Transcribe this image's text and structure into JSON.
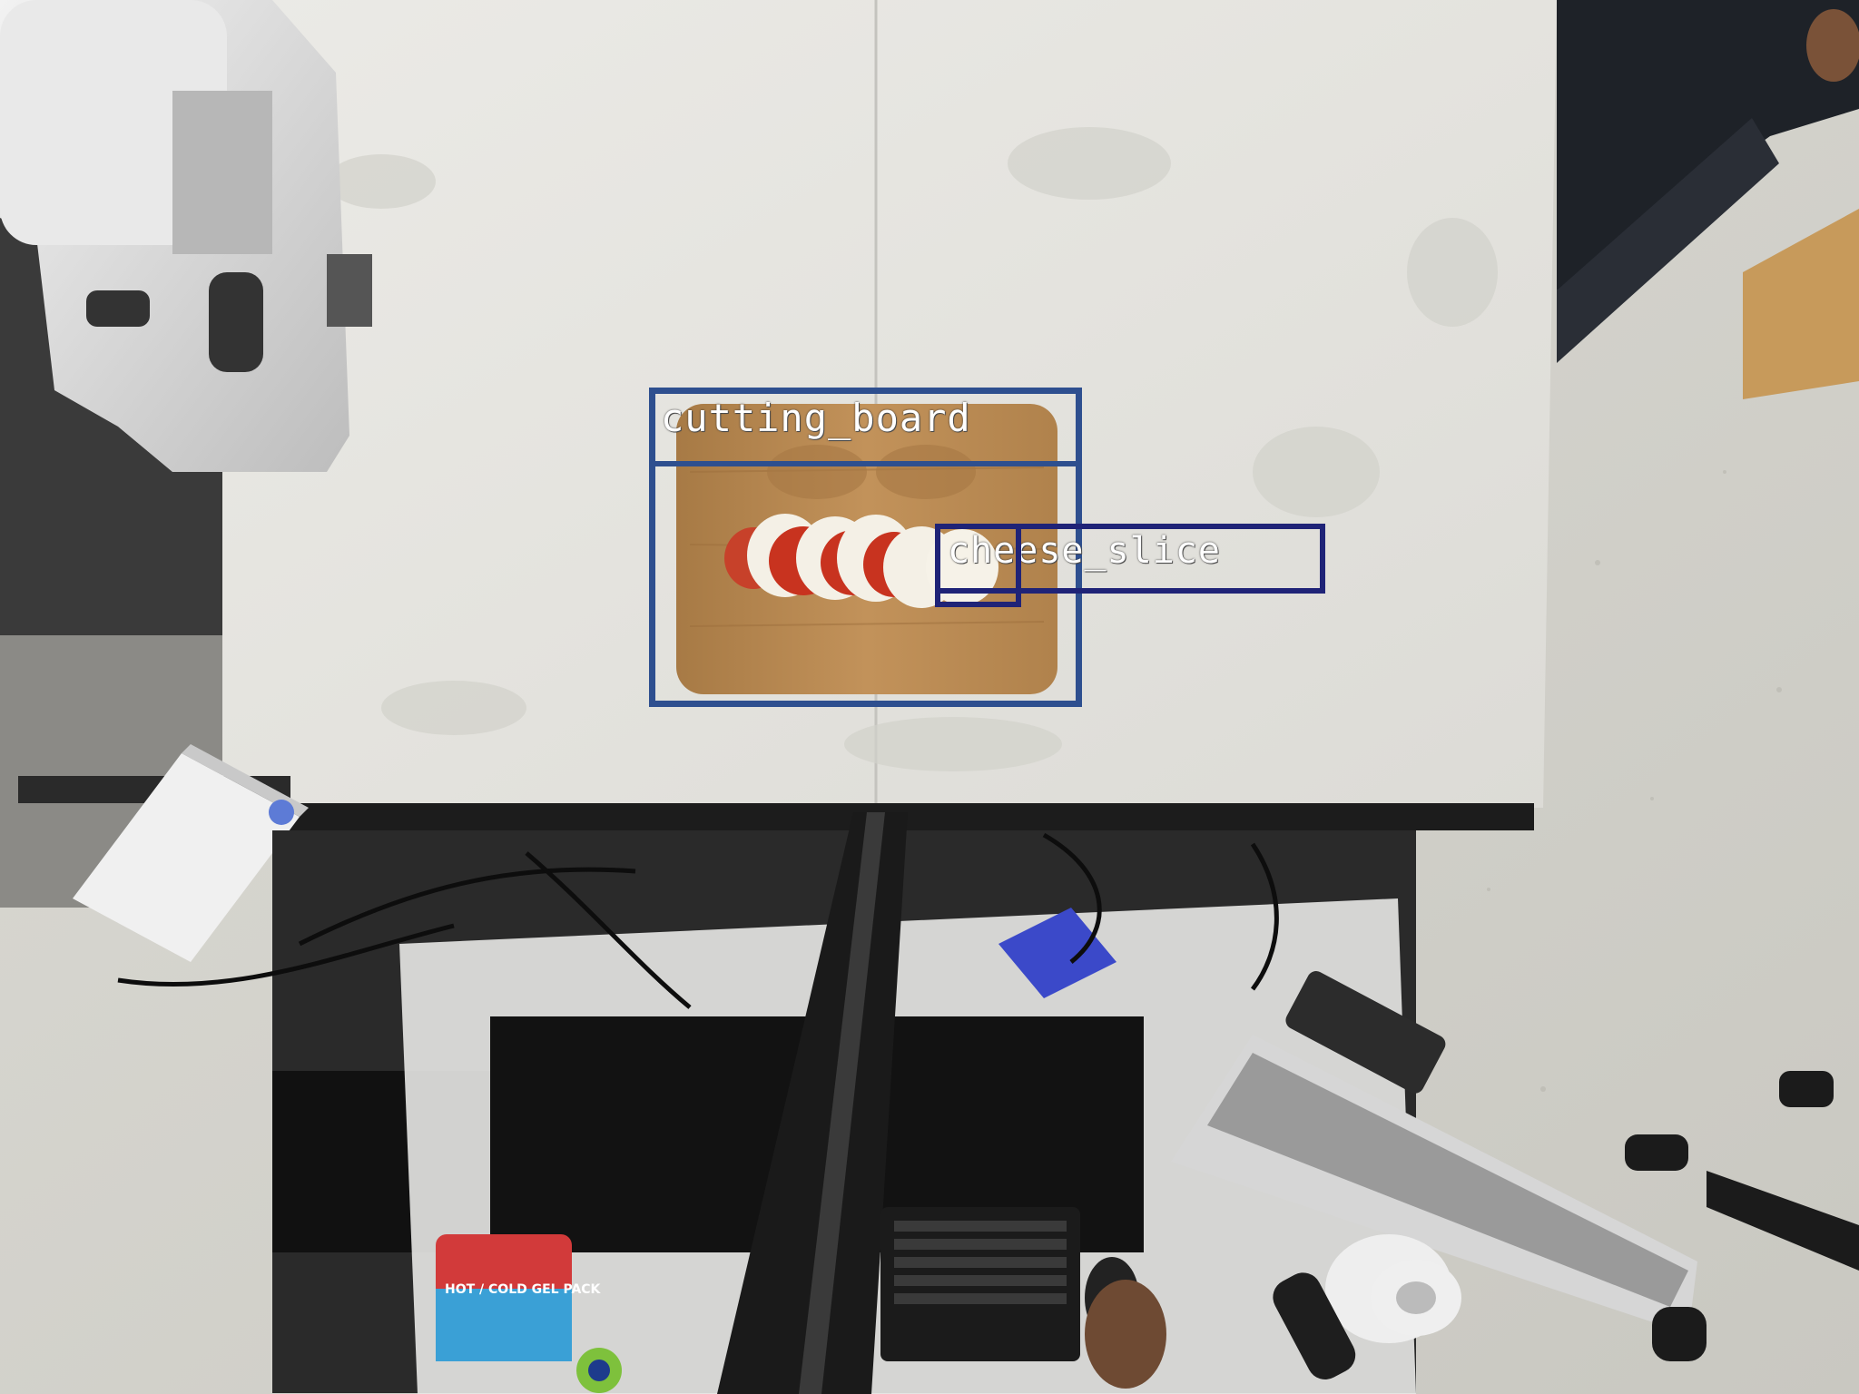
{
  "image": {
    "description_colors": {
      "floor": "#d4d3cc",
      "table": "#e6e5e1",
      "board": "#b88a52",
      "box_primary": "#2e4f8f",
      "box_secondary": "#1f2377"
    }
  },
  "detections": [
    {
      "label": "cutting_board",
      "color": "#2e4f8f"
    },
    {
      "label": "cheese_slice",
      "color": "#1f2377"
    }
  ],
  "scene_text": {
    "gel_pack": "HOT / COLD GEL PACK"
  }
}
